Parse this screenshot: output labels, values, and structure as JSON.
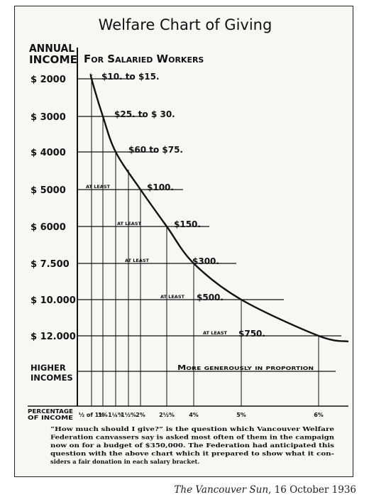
{
  "chart_data": {
    "type": "line",
    "title": "Welfare Chart of Giving",
    "subtitle": "For Salaried Workers",
    "ylabel": "Annual Income",
    "xlabel": "Percentage of Income",
    "x_ticks": [
      "½ of 1%",
      "1%",
      "1¼%",
      "1½%",
      "2%",
      "2½%",
      "4%",
      "5%",
      "6%"
    ],
    "y_categories": [
      "$ 2000",
      "$ 3000",
      "$ 4000",
      "$ 5000",
      "$ 6000",
      "$ 7.500",
      "$ 10.000",
      "$ 12.000"
    ],
    "brackets": [
      {
        "income": "$ 2000",
        "label_prefix": "",
        "donation": "$10. to $15."
      },
      {
        "income": "$ 3000",
        "label_prefix": "",
        "donation": "$25. to $ 30."
      },
      {
        "income": "$ 4000",
        "label_prefix": "",
        "donation": "$60 to $75."
      },
      {
        "income": "$ 5000",
        "label_prefix": "AT LEAST",
        "donation": "$100."
      },
      {
        "income": "$ 6000",
        "label_prefix": "AT LEAST",
        "donation": "$150."
      },
      {
        "income": "$ 7.500",
        "label_prefix": "AT LEAST",
        "donation": "$300."
      },
      {
        "income": "$ 10.000",
        "label_prefix": "AT LEAST",
        "donation": "$500."
      },
      {
        "income": "$ 12.000",
        "label_prefix": "AT LEAST",
        "donation": "$750."
      }
    ],
    "higher_incomes": {
      "label": "Higher Incomes",
      "note": "More generously in proportion"
    }
  },
  "header": {
    "annual": "ANNUAL",
    "income": "INCOME"
  },
  "footer": {
    "percentage": "PERCENTAGE",
    "of_income": "OF INCOME"
  },
  "caption": [
    "“How much should I give?” is the question which Vancouver Welfare",
    "Federation canvassers say is asked most often of them in the campaign",
    "now on for a budget of $350,000.  The Federation had anticipated this",
    "question with the above chart which it prepared to show what it con-",
    "siders a fair donation in each salary bracket."
  ],
  "source": {
    "publication": "The Vancouver Sun",
    "date": ", 16 October 1936"
  }
}
